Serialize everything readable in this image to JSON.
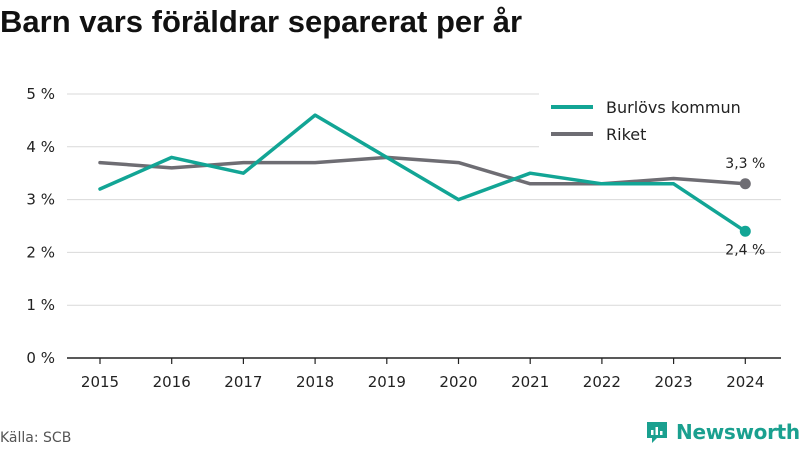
{
  "title": "Barn vars föräldrar separerat per år",
  "source": "Källa: SCB",
  "brand": {
    "name": "Newsworthy",
    "icon": "newsworthy-logo-icon",
    "color": "#1aa08f"
  },
  "chart_data": {
    "type": "line",
    "title": "Barn vars föräldrar separerat per år",
    "xlabel": "",
    "ylabel": "",
    "x": [
      "2015",
      "2016",
      "2017",
      "2018",
      "2019",
      "2020",
      "2021",
      "2022",
      "2023",
      "2024"
    ],
    "ylim": [
      0,
      5
    ],
    "yticks": [
      0,
      1,
      2,
      3,
      4,
      5
    ],
    "ytick_labels": [
      "0 %",
      "1 %",
      "2 %",
      "3 %",
      "4 %",
      "5 %"
    ],
    "grid": true,
    "legend_position": "top-right",
    "series": [
      {
        "name": "Burlövs kommun",
        "color": "#12a595",
        "values": [
          3.2,
          3.8,
          3.5,
          4.6,
          3.8,
          3.0,
          3.5,
          3.3,
          3.3,
          2.4
        ],
        "end_label": "2,4 %"
      },
      {
        "name": "Riket",
        "color": "#6e6d73",
        "values": [
          3.7,
          3.6,
          3.7,
          3.7,
          3.8,
          3.7,
          3.3,
          3.3,
          3.4,
          3.3
        ],
        "end_label": "3,3 %"
      }
    ]
  }
}
